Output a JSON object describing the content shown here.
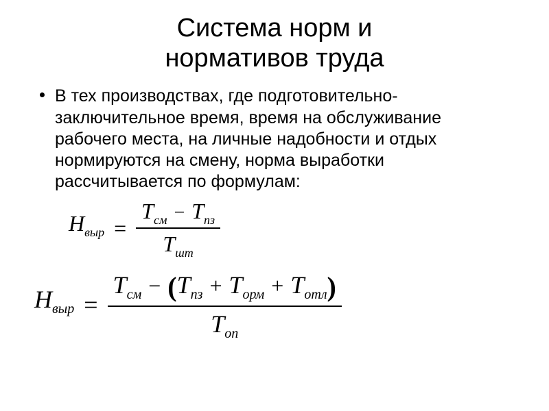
{
  "title_line1": "Система норм и",
  "title_line2": "нормативов труда",
  "body_text": "В тех производствах, где подготовительно-заключительное время, время на обслуживание рабочего места, на личные надобности и отдых нормируются на смену, норма выработки рассчитывается по формулам:",
  "formula1": {
    "lhs_var": "Н",
    "lhs_sub": "выр",
    "num_var1": "Т",
    "num_sub1": "см",
    "num_op": "−",
    "num_var2": "Т",
    "num_sub2": "пз",
    "den_var": "Т",
    "den_sub": "шт"
  },
  "formula2": {
    "lhs_var": "Н",
    "lhs_sub": "выр",
    "num_var1": "Т",
    "num_sub1": "см",
    "num_op1": "−",
    "paren_open": "(",
    "num_var2": "Т",
    "num_sub2": "пз",
    "num_op2": "+",
    "num_var3": "Т",
    "num_sub3": "орм",
    "num_op3": "+",
    "num_var4": "Т",
    "num_sub4": "отл",
    "paren_close": ")",
    "den_var": "Т",
    "den_sub": "оп"
  },
  "colors": {
    "text": "#000000",
    "background": "#ffffff"
  },
  "typography": {
    "title_fontsize": 38,
    "body_fontsize": 25,
    "formula_fontsize": 36,
    "subscript_fontsize": 20
  }
}
